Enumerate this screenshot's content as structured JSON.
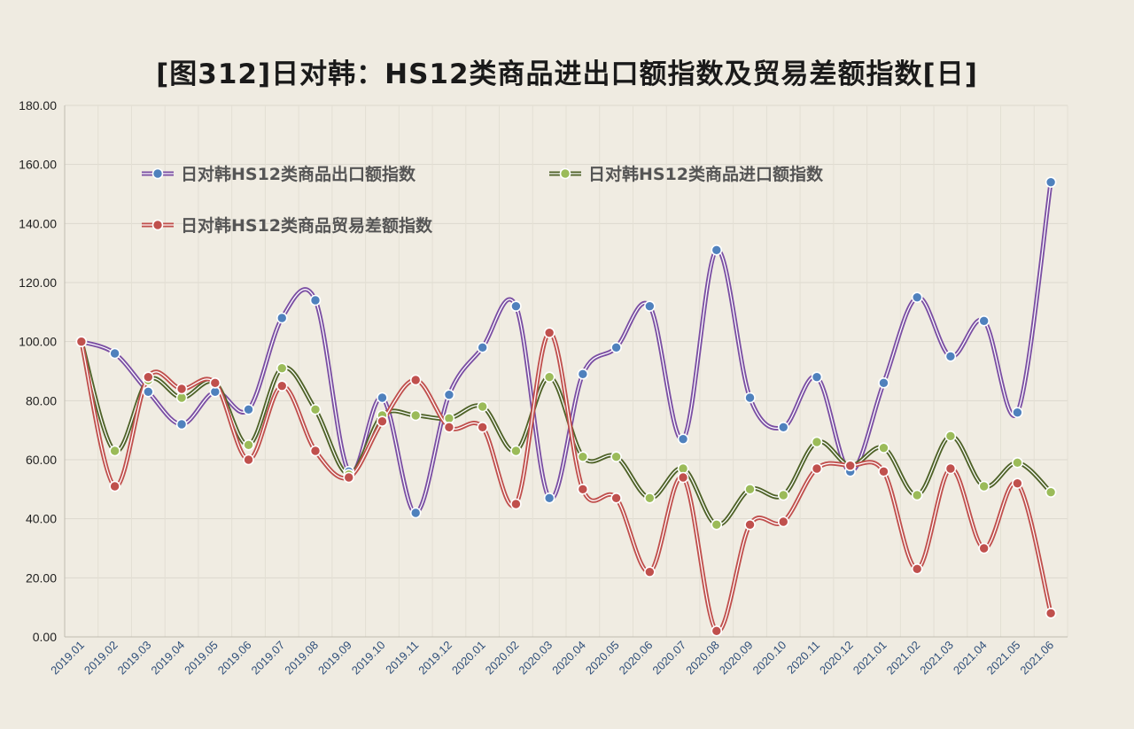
{
  "chart_data": {
    "type": "line",
    "title": "[图312]日对韩：HS12类商品进出口额指数及贸易差额指数[日]",
    "ylim": [
      0,
      180
    ],
    "yticks": [
      "0.00",
      "20.00",
      "40.00",
      "60.00",
      "80.00",
      "100.00",
      "120.00",
      "140.00",
      "160.00",
      "180.00"
    ],
    "grid": true,
    "legend_position": "top-left inside",
    "categories": [
      "2019.01",
      "2019.02",
      "2019.03",
      "2019.04",
      "2019.05",
      "2019.06",
      "2019.07",
      "2019.08",
      "2019.09",
      "2019.10",
      "2019.11",
      "2019.12",
      "2020.01",
      "2020.02",
      "2020.03",
      "2020.04",
      "2020.05",
      "2020.06",
      "2020.07",
      "2020.08",
      "2020.09",
      "2020.10",
      "2020.11",
      "2020.12",
      "2021.01",
      "2021.02",
      "2021.03",
      "2021.04",
      "2021.05",
      "2021.06"
    ],
    "series": [
      {
        "name": "日对韩HS12类商品出口额指数",
        "color": "#7b4fa3",
        "marker_color": "#4f81bd",
        "values": [
          100,
          96,
          83,
          72,
          83,
          77,
          108,
          114,
          56,
          81,
          42,
          82,
          98,
          112,
          47,
          89,
          98,
          112,
          67,
          131,
          81,
          71,
          88,
          56,
          86,
          115,
          95,
          107,
          76,
          154
        ]
      },
      {
        "name": "日对韩HS12类商品进口额指数",
        "color": "#4f6228",
        "marker_color": "#9bbb59",
        "values": [
          100,
          63,
          87,
          81,
          86,
          65,
          91,
          77,
          55,
          75,
          75,
          74,
          78,
          63,
          88,
          61,
          61,
          47,
          57,
          38,
          50,
          48,
          66,
          58,
          64,
          48,
          68,
          51,
          59,
          49
        ]
      },
      {
        "name": "日对韩HS12类商品贸易差额指数",
        "color": "#c0504d",
        "marker_color": "#c0504d",
        "values": [
          100,
          51,
          88,
          84,
          86,
          60,
          85,
          63,
          54,
          73,
          87,
          71,
          71,
          45,
          103,
          50,
          47,
          22,
          54,
          2,
          38,
          39,
          57,
          58,
          56,
          23,
          57,
          30,
          52,
          8
        ]
      }
    ]
  }
}
